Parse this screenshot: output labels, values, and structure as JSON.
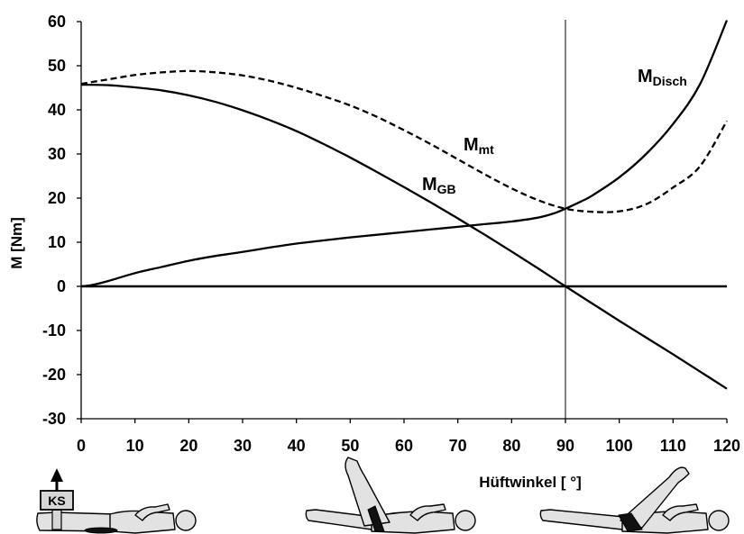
{
  "chart_data": {
    "type": "line",
    "xlabel": "Hüftwinkel [ °]",
    "ylabel": "M [Nm]",
    "xlim": [
      0,
      120
    ],
    "ylim": [
      -30,
      60
    ],
    "x_ticks": [
      0,
      10,
      20,
      30,
      40,
      50,
      60,
      70,
      80,
      90,
      100,
      110,
      120
    ],
    "y_ticks": [
      60,
      50,
      40,
      30,
      20,
      10,
      0,
      -10,
      -20,
      -30
    ],
    "grid": false,
    "reference_lines": [
      {
        "axis": "y",
        "value": 0
      },
      {
        "axis": "x",
        "value": 90
      }
    ],
    "series": [
      {
        "label": "M",
        "label_sub": "Disch",
        "dashed": false,
        "color": "#000000",
        "x": [
          0,
          2,
          5,
          10,
          15,
          20,
          25,
          30,
          35,
          40,
          45,
          50,
          55,
          60,
          65,
          70,
          75,
          80,
          85,
          88,
          90,
          93,
          95,
          100,
          105,
          110,
          115,
          120
        ],
        "y": [
          0,
          0.3,
          1.2,
          3.0,
          4.4,
          5.8,
          6.9,
          7.8,
          8.8,
          9.7,
          10.4,
          11.1,
          11.7,
          12.3,
          12.9,
          13.5,
          14.1,
          14.7,
          15.6,
          16.6,
          17.6,
          19.3,
          20.6,
          24.7,
          30.0,
          36.8,
          45.8,
          60.3
        ]
      },
      {
        "label": "M",
        "label_sub": "mt",
        "dashed": true,
        "color": "#000000",
        "x": [
          0,
          5,
          10,
          15,
          20,
          25,
          30,
          35,
          40,
          45,
          50,
          55,
          60,
          65,
          70,
          75,
          80,
          85,
          90,
          95,
          100,
          105,
          110,
          115,
          120
        ],
        "y": [
          45.9,
          46.9,
          47.9,
          48.5,
          48.8,
          48.5,
          47.8,
          46.6,
          45.0,
          43.1,
          41.0,
          38.4,
          35.4,
          32.2,
          28.8,
          25.4,
          22.2,
          19.5,
          17.6,
          16.9,
          17.0,
          18.6,
          22.4,
          27.2,
          37.5
        ]
      },
      {
        "label": "M",
        "label_sub": "GB",
        "dashed": false,
        "color": "#000000",
        "x": [
          0,
          5,
          10,
          15,
          20,
          25,
          30,
          35,
          40,
          45,
          50,
          55,
          60,
          65,
          70,
          75,
          80,
          85,
          90,
          95,
          100,
          105,
          110,
          115,
          120
        ],
        "y": [
          45.7,
          45.6,
          45.1,
          44.4,
          43.3,
          41.8,
          39.9,
          37.7,
          35.2,
          32.3,
          29.2,
          25.9,
          22.5,
          19.0,
          15.4,
          11.7,
          7.9,
          4.0,
          0,
          -3.9,
          -7.8,
          -11.6,
          -15.4,
          -19.3,
          -23.2
        ]
      }
    ]
  },
  "illustrations": {
    "ks_label": "KS"
  }
}
